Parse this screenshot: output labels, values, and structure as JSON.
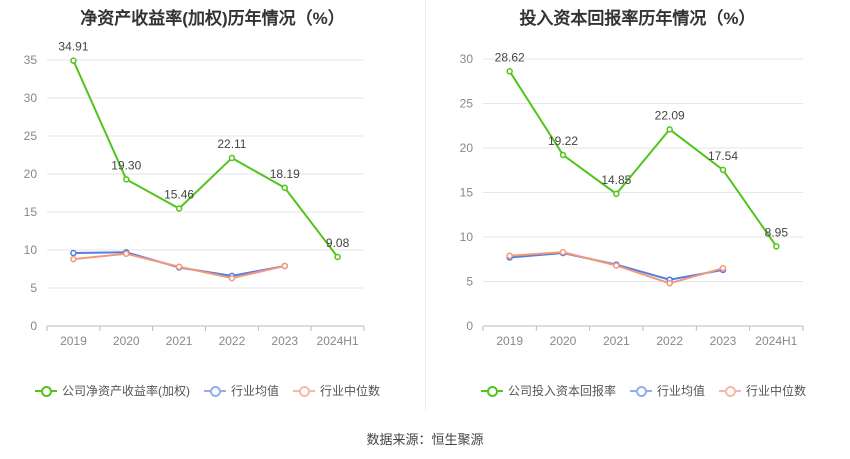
{
  "colors": {
    "company": "#52c41a",
    "industry_avg": "#4f7fe0",
    "industry_median": "#f4977a",
    "grid": "#e6e6e6",
    "axis_text": "#888888"
  },
  "footer": {
    "source_label": "数据来源：恒生聚源"
  },
  "chart_data": [
    {
      "type": "line",
      "title": "净资产收益率(加权)历年情况（%）",
      "categories": [
        "2019",
        "2020",
        "2021",
        "2022",
        "2023",
        "2024H1"
      ],
      "ylim": [
        0,
        35
      ],
      "yticks": [
        0,
        5,
        10,
        15,
        20,
        25,
        30,
        35
      ],
      "series": [
        {
          "name": "公司净资产收益率(加权)",
          "color_key": "company",
          "values": [
            34.91,
            19.3,
            15.46,
            22.11,
            18.19,
            9.08
          ],
          "labels": [
            "34.91",
            "19.30",
            "15.46",
            "22.11",
            "18.19",
            "9.08"
          ]
        },
        {
          "name": "行业均值",
          "color_key": "industry_avg",
          "values": [
            9.6,
            9.7,
            7.7,
            6.6,
            7.9,
            null
          ]
        },
        {
          "name": "行业中位数",
          "color_key": "industry_median",
          "values": [
            8.8,
            9.5,
            7.8,
            6.3,
            7.9,
            null
          ]
        }
      ]
    },
    {
      "type": "line",
      "title": "投入资本回报率历年情况（%）",
      "categories": [
        "2019",
        "2020",
        "2021",
        "2022",
        "2023",
        "2024H1"
      ],
      "ylim": [
        0,
        30
      ],
      "yticks": [
        0,
        5,
        10,
        15,
        20,
        25,
        30
      ],
      "series": [
        {
          "name": "公司投入资本回报率",
          "color_key": "company",
          "values": [
            28.62,
            19.22,
            14.85,
            22.09,
            17.54,
            8.95
          ],
          "labels": [
            "28.62",
            "19.22",
            "14.85",
            "22.09",
            "17.54",
            "8.95"
          ]
        },
        {
          "name": "行业均值",
          "color_key": "industry_avg",
          "values": [
            7.7,
            8.2,
            6.9,
            5.2,
            6.3,
            null
          ]
        },
        {
          "name": "行业中位数",
          "color_key": "industry_median",
          "values": [
            7.9,
            8.3,
            6.8,
            4.8,
            6.5,
            null
          ]
        }
      ]
    }
  ]
}
